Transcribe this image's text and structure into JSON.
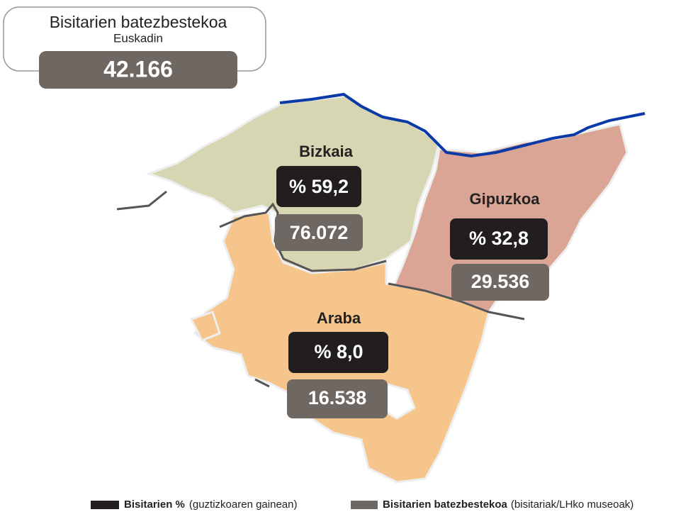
{
  "header": {
    "title": "Bisitarien batezbestekoa",
    "subtitle": "Euskadin",
    "value": "42.166"
  },
  "regions": [
    {
      "name": "Bizkaia",
      "percent": "% 59,2",
      "average": "76.072"
    },
    {
      "name": "Gipuzkoa",
      "percent": "% 32,8",
      "average": "29.536"
    },
    {
      "name": "Araba",
      "percent": "% 8,0",
      "average": "16.538"
    }
  ],
  "legend": [
    {
      "label": "Bisitarien %",
      "note": "(guztizkoaren gainean)"
    },
    {
      "label": "Bisitarien batezbestekoa",
      "note": "(bisitariak/LHko museoak)"
    }
  ]
}
